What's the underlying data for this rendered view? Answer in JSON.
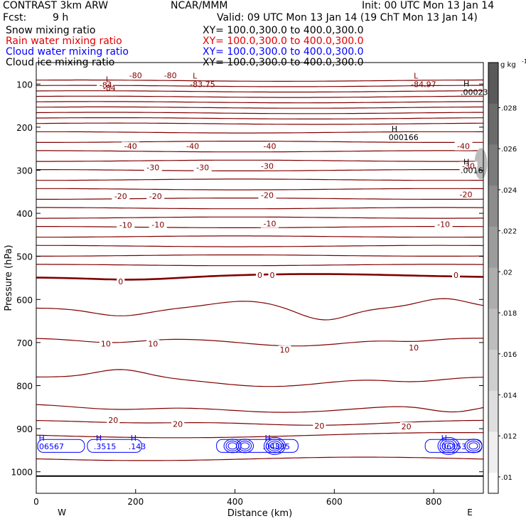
{
  "header": {
    "model": "CONTRAST  3km ARW",
    "org": "NCAR/MMM",
    "init": "Init: 00 UTC Mon 13 Jan 14",
    "fcst_label": "Fcst:",
    "fcst_value": "9 h",
    "valid": "Valid: 09 UTC Mon 13 Jan 14 (19 ChT Mon 13 Jan 14)"
  },
  "fields": [
    {
      "name": "Snow mixing ratio",
      "color": "#000000",
      "xy": "XY= 100.0,300.0 to 400.0,300.0"
    },
    {
      "name": "Rain water mixing ratio",
      "color": "#e00000",
      "xy": "XY= 100.0,300.0 to 400.0,300.0"
    },
    {
      "name": "Cloud water mixing ratio",
      "color": "#0000ff",
      "xy": "XY= 100.0,300.0 to 400.0,300.0"
    },
    {
      "name": "Cloud ice mixing ratio",
      "color": "#000000",
      "xy": "XY= 100.0,300.0 to 400.0,300.0"
    }
  ],
  "chart_data": {
    "type": "contour_cross_section",
    "xlabel": "Distance (km)",
    "ylabel": "Pressure (hPa)",
    "xlim": [
      0,
      900
    ],
    "ylim": [
      1050,
      50
    ],
    "x_ticks": [
      0,
      200,
      400,
      600,
      800
    ],
    "y_ticks": [
      100,
      200,
      300,
      400,
      500,
      600,
      700,
      800,
      900,
      1000
    ],
    "x_end_labels": {
      "left": "W",
      "right": "E"
    },
    "temperature_contours": {
      "color": "#800000",
      "labels": [
        {
          "text": "-80",
          "x": 200,
          "p": 80
        },
        {
          "text": "-80",
          "x": 270,
          "p": 80
        },
        {
          "text": "-84",
          "x": 140,
          "p": 102
        },
        {
          "text": "-40",
          "x": 190,
          "p": 244
        },
        {
          "text": "-40",
          "x": 315,
          "p": 244
        },
        {
          "text": "-40",
          "x": 470,
          "p": 244
        },
        {
          "text": "-40",
          "x": 860,
          "p": 244
        },
        {
          "text": "-30",
          "x": 235,
          "p": 293
        },
        {
          "text": "-30",
          "x": 335,
          "p": 293
        },
        {
          "text": "-30",
          "x": 465,
          "p": 290
        },
        {
          "text": "-30",
          "x": 870,
          "p": 290
        },
        {
          "text": "-20",
          "x": 170,
          "p": 360
        },
        {
          "text": "-20",
          "x": 240,
          "p": 360
        },
        {
          "text": "-20",
          "x": 465,
          "p": 358
        },
        {
          "text": "-20",
          "x": 865,
          "p": 356
        },
        {
          "text": "-10",
          "x": 180,
          "p": 427
        },
        {
          "text": "-10",
          "x": 245,
          "p": 426
        },
        {
          "text": "-10",
          "x": 470,
          "p": 424
        },
        {
          "text": "-10",
          "x": 820,
          "p": 425
        },
        {
          "text": "0",
          "x": 170,
          "p": 558
        },
        {
          "text": "0",
          "x": 450,
          "p": 543
        },
        {
          "text": "0",
          "x": 475,
          "p": 543
        },
        {
          "text": "0",
          "x": 845,
          "p": 543
        },
        {
          "text": "10",
          "x": 140,
          "p": 703
        },
        {
          "text": "10",
          "x": 235,
          "p": 703
        },
        {
          "text": "10",
          "x": 500,
          "p": 717
        },
        {
          "text": "10",
          "x": 760,
          "p": 712
        },
        {
          "text": "20",
          "x": 155,
          "p": 880
        },
        {
          "text": "20",
          "x": 285,
          "p": 889
        },
        {
          "text": "20",
          "x": 570,
          "p": 893
        },
        {
          "text": "20",
          "x": 745,
          "p": 895
        }
      ],
      "extrema": [
        {
          "kind": "L",
          "value": "-84",
          "x": 140,
          "p": 95
        },
        {
          "kind": "L",
          "value": "-83.75",
          "x": 315,
          "p": 87
        },
        {
          "kind": "L",
          "value": "-84.97",
          "x": 760,
          "p": 87
        },
        {
          "kind": "H",
          "value": ".00023",
          "x": 860,
          "p": 105
        },
        {
          "kind": "H",
          "value": "000166",
          "x": 715,
          "p": 210
        },
        {
          "kind": "H",
          "value": ".0016",
          "x": 860,
          "p": 287
        }
      ]
    },
    "cloud_water_extrema": [
      {
        "kind": "H",
        "value": ".3515",
        "x": 120,
        "p": 938
      },
      {
        "kind": "H",
        "value": ".143",
        "x": 190,
        "p": 938
      },
      {
        "kind": "H",
        "value": ".06567",
        "x": 5,
        "p": 938
      },
      {
        "kind": "H",
        "value": ".04885",
        "x": 460,
        "p": 938
      },
      {
        "kind": "H",
        "value": ".06153",
        "x": 815,
        "p": 938
      }
    ],
    "colorbar": {
      "unit": "g kg",
      "unit_exponent": "-1",
      "ticks": [
        ".028",
        ".026",
        ".024",
        ".022",
        ".02",
        ".018",
        ".016",
        ".014",
        ".012",
        ".01"
      ]
    }
  }
}
